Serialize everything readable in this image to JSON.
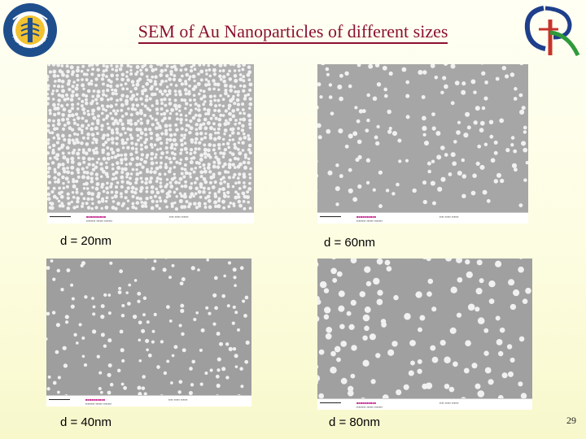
{
  "title": "SEM of Au Nanoparticles of different sizes",
  "logo_left_text": "ACADEMIA SINICA",
  "page_number": "29",
  "images": [
    {
      "caption": "d = 20nm",
      "particle_size_nm": 20
    },
    {
      "caption": "d = 60nm",
      "particle_size_nm": 60
    },
    {
      "caption": "d = 40nm",
      "particle_size_nm": 40
    },
    {
      "caption": "d = 80nm",
      "particle_size_nm": 80
    }
  ],
  "colors": {
    "title": "#8b1030",
    "background": "#fdfde2",
    "sem_background": "#8d8d8d",
    "particle": "#f1f1f1"
  }
}
